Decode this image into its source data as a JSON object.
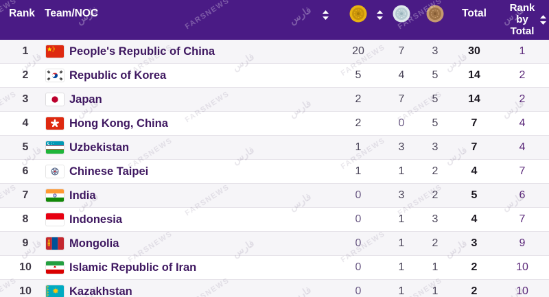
{
  "header": {
    "rank_label": "Rank",
    "team_label": "Team/NOC",
    "total_label": "Total",
    "rank_by_total_label": "Rank by Total",
    "gold_icon": "gold-medal-icon",
    "silver_icon": "silver-medal-icon",
    "bronze_icon": "bronze-medal-icon",
    "header_background": "#4A1B85",
    "header_text_color": "#FFFFFF"
  },
  "chart_data": {
    "type": "table",
    "title": "Medal standings table",
    "columns": [
      "Rank",
      "Team/NOC",
      "Gold",
      "Silver",
      "Bronze",
      "Total",
      "Rank by Total"
    ],
    "rows": [
      [
        1,
        "People's Republic of China",
        20,
        7,
        3,
        30,
        1
      ],
      [
        2,
        "Republic of Korea",
        5,
        4,
        5,
        14,
        2
      ],
      [
        3,
        "Japan",
        2,
        7,
        5,
        14,
        2
      ],
      [
        4,
        "Hong Kong, China",
        2,
        0,
        5,
        7,
        4
      ],
      [
        5,
        "Uzbekistan",
        1,
        3,
        3,
        7,
        4
      ],
      [
        6,
        "Chinese Taipei",
        1,
        1,
        2,
        4,
        7
      ],
      [
        7,
        "India",
        0,
        3,
        2,
        5,
        6
      ],
      [
        8,
        "Indonesia",
        0,
        1,
        3,
        4,
        7
      ],
      [
        9,
        "Mongolia",
        0,
        1,
        2,
        3,
        9
      ],
      [
        10,
        "Islamic Republic of Iran",
        0,
        1,
        1,
        2,
        10
      ],
      [
        10,
        "Kazakhstan",
        0,
        1,
        1,
        2,
        10
      ]
    ],
    "legend_position": "none",
    "grid": "row-separators",
    "zebra_striping": true
  },
  "colors": {
    "accent_purple": "#4A1B85",
    "team_name_text": "#3E1760",
    "rank_by_total_text": "#5A2779",
    "count_text": "#4A4458",
    "total_text": "#1A161F",
    "odd_row_background": "#F6F5F8",
    "row_separator": "#E7E4EA",
    "gold": "#E9B312",
    "silver": "#C2D4D9",
    "bronze": "#BC9068"
  },
  "watermark": {
    "text": "FARSNEWS",
    "logo_text": "فارس"
  }
}
